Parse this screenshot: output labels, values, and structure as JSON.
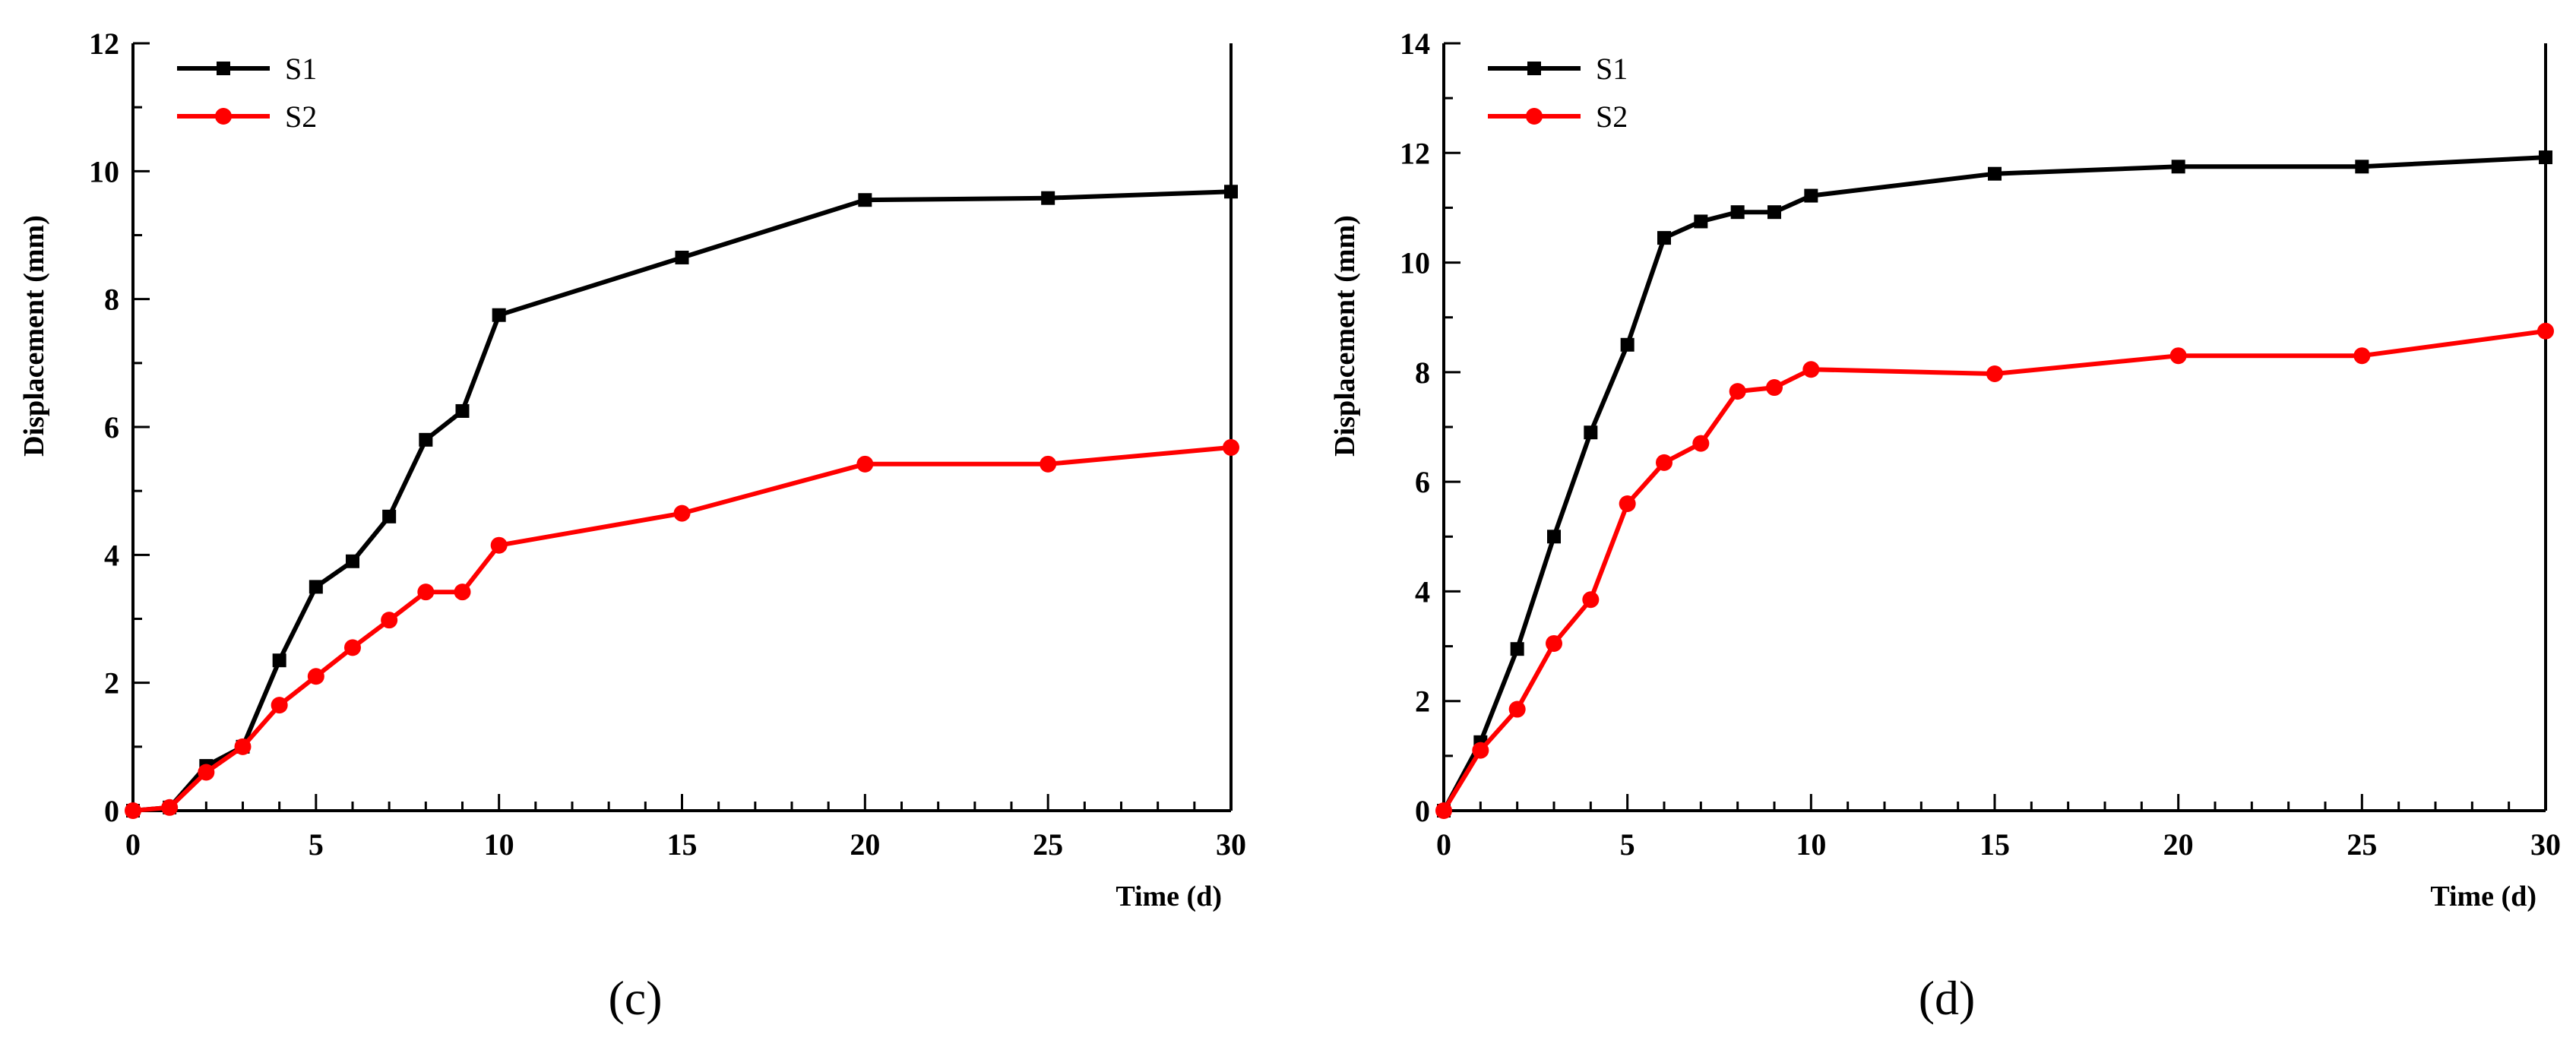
{
  "chart_data": [
    {
      "type": "line",
      "panel_label": "(c)",
      "xlabel": "Time (d)",
      "ylabel": "Displacement (mm)",
      "xlim": [
        0,
        30
      ],
      "ylim": [
        0,
        12
      ],
      "xticks": [
        0,
        5,
        10,
        15,
        20,
        25,
        30
      ],
      "yticks": [
        0,
        2,
        4,
        6,
        8,
        10,
        12
      ],
      "legend_position": "top-left",
      "grid": false,
      "series": [
        {
          "name": "S1",
          "color": "#000000",
          "marker": "square",
          "x": [
            0,
            1,
            2,
            3,
            4,
            5,
            6,
            7,
            8,
            9,
            10,
            15,
            20,
            25,
            30
          ],
          "y": [
            0,
            0.05,
            0.7,
            1.0,
            2.35,
            3.5,
            3.9,
            4.6,
            5.8,
            6.25,
            7.75,
            8.65,
            9.55,
            9.58,
            9.68
          ]
        },
        {
          "name": "S2",
          "color": "#ff0000",
          "marker": "circle",
          "x": [
            0,
            1,
            2,
            3,
            4,
            5,
            6,
            7,
            8,
            9,
            10,
            15,
            20,
            25,
            30
          ],
          "y": [
            0,
            0.05,
            0.6,
            1.0,
            1.65,
            2.1,
            2.55,
            2.98,
            3.42,
            3.42,
            4.15,
            4.65,
            5.42,
            5.42,
            5.68
          ]
        }
      ]
    },
    {
      "type": "line",
      "panel_label": "(d)",
      "xlabel": "Time (d)",
      "ylabel": "Displacement (mm)",
      "xlim": [
        0,
        30
      ],
      "ylim": [
        0,
        14
      ],
      "xticks": [
        0,
        5,
        10,
        15,
        20,
        25,
        30
      ],
      "yticks": [
        0,
        2,
        4,
        6,
        8,
        10,
        12,
        14
      ],
      "legend_position": "top-left",
      "grid": false,
      "series": [
        {
          "name": "S1",
          "color": "#000000",
          "marker": "square",
          "x": [
            0,
            1,
            2,
            3,
            4,
            5,
            6,
            7,
            8,
            9,
            10,
            15,
            20,
            25,
            30
          ],
          "y": [
            0,
            1.25,
            2.95,
            5.0,
            6.9,
            8.5,
            10.45,
            10.75,
            10.92,
            10.92,
            11.22,
            11.62,
            11.75,
            11.75,
            11.92
          ]
        },
        {
          "name": "S2",
          "color": "#ff0000",
          "marker": "circle",
          "x": [
            0,
            1,
            2,
            3,
            4,
            5,
            6,
            7,
            8,
            9,
            10,
            15,
            20,
            25,
            30
          ],
          "y": [
            0,
            1.1,
            1.85,
            3.05,
            3.85,
            5.6,
            6.35,
            6.7,
            7.65,
            7.72,
            8.05,
            7.97,
            8.3,
            8.3,
            8.75
          ]
        }
      ]
    }
  ]
}
